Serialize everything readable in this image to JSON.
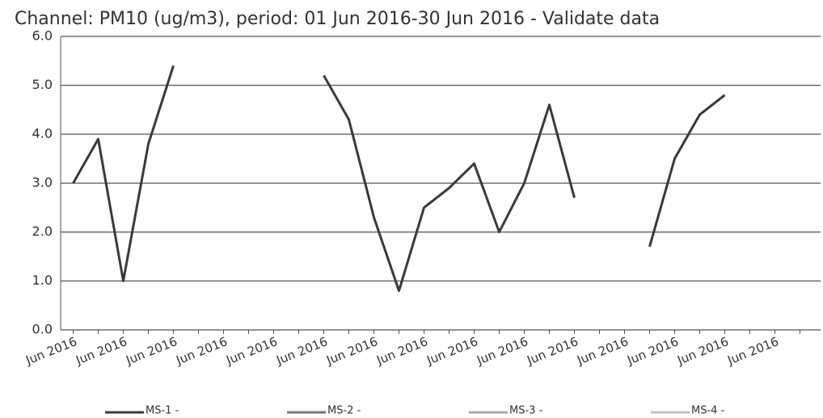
{
  "chart_data": {
    "type": "line",
    "title": "Channel: PM10 (ug/m3), period: 01 Jun 2016-30 Jun 2016 - Validate data",
    "categories": [
      "Jun 2016",
      null,
      "Jun 2016",
      null,
      "Jun 2016",
      null,
      "Jun 2016",
      null,
      "Jun 2016",
      null,
      "Jun 2016",
      null,
      "Jun 2016",
      null,
      "Jun 2016",
      null,
      "Jun 2016",
      null,
      "Jun 2016",
      null,
      "Jun 2016",
      null,
      "Jun 2016",
      null,
      "Jun 2016",
      null,
      "Jun 2016",
      null,
      "Jun 2016",
      null
    ],
    "series": [
      {
        "name": "MS-1 -",
        "color": "#3a3a3a",
        "values": [
          3.0,
          3.9,
          1.0,
          3.8,
          5.4,
          null,
          null,
          null,
          null,
          null,
          5.2,
          4.3,
          2.3,
          0.8,
          2.5,
          2.9,
          3.4,
          2.0,
          3.0,
          4.6,
          2.7,
          null,
          null,
          1.7,
          3.5,
          4.4,
          4.8,
          null,
          null,
          null
        ]
      },
      {
        "name": "MS-2 -",
        "color": "#777777",
        "values": [
          null,
          null,
          null,
          null,
          null,
          null,
          null,
          null,
          null,
          null,
          null,
          null,
          null,
          null,
          null,
          null,
          null,
          null,
          null,
          null,
          null,
          null,
          null,
          null,
          null,
          null,
          null,
          null,
          null,
          null
        ]
      },
      {
        "name": "MS-3 -",
        "color": "#a8a8a8",
        "values": [
          null,
          null,
          null,
          null,
          null,
          null,
          null,
          null,
          null,
          null,
          null,
          null,
          null,
          null,
          null,
          null,
          null,
          null,
          null,
          null,
          null,
          null,
          null,
          null,
          null,
          null,
          null,
          null,
          null,
          null
        ]
      },
      {
        "name": "MS-4 -",
        "color": "#c0c0c0",
        "values": [
          null,
          null,
          null,
          null,
          null,
          null,
          null,
          null,
          null,
          null,
          null,
          null,
          null,
          null,
          null,
          null,
          null,
          null,
          null,
          null,
          null,
          null,
          null,
          null,
          null,
          null,
          null,
          null,
          null,
          null
        ]
      }
    ],
    "ylim": [
      0,
      6
    ],
    "yticks": [
      {
        "value": 0,
        "label": "0.0"
      },
      {
        "value": 1,
        "label": "1.0"
      },
      {
        "value": 2,
        "label": "2.0"
      },
      {
        "value": 3,
        "label": "3.0"
      },
      {
        "value": 4,
        "label": "4.0"
      },
      {
        "value": 5,
        "label": "5.0"
      },
      {
        "value": 6,
        "label": "6.0"
      }
    ],
    "grid": true
  }
}
